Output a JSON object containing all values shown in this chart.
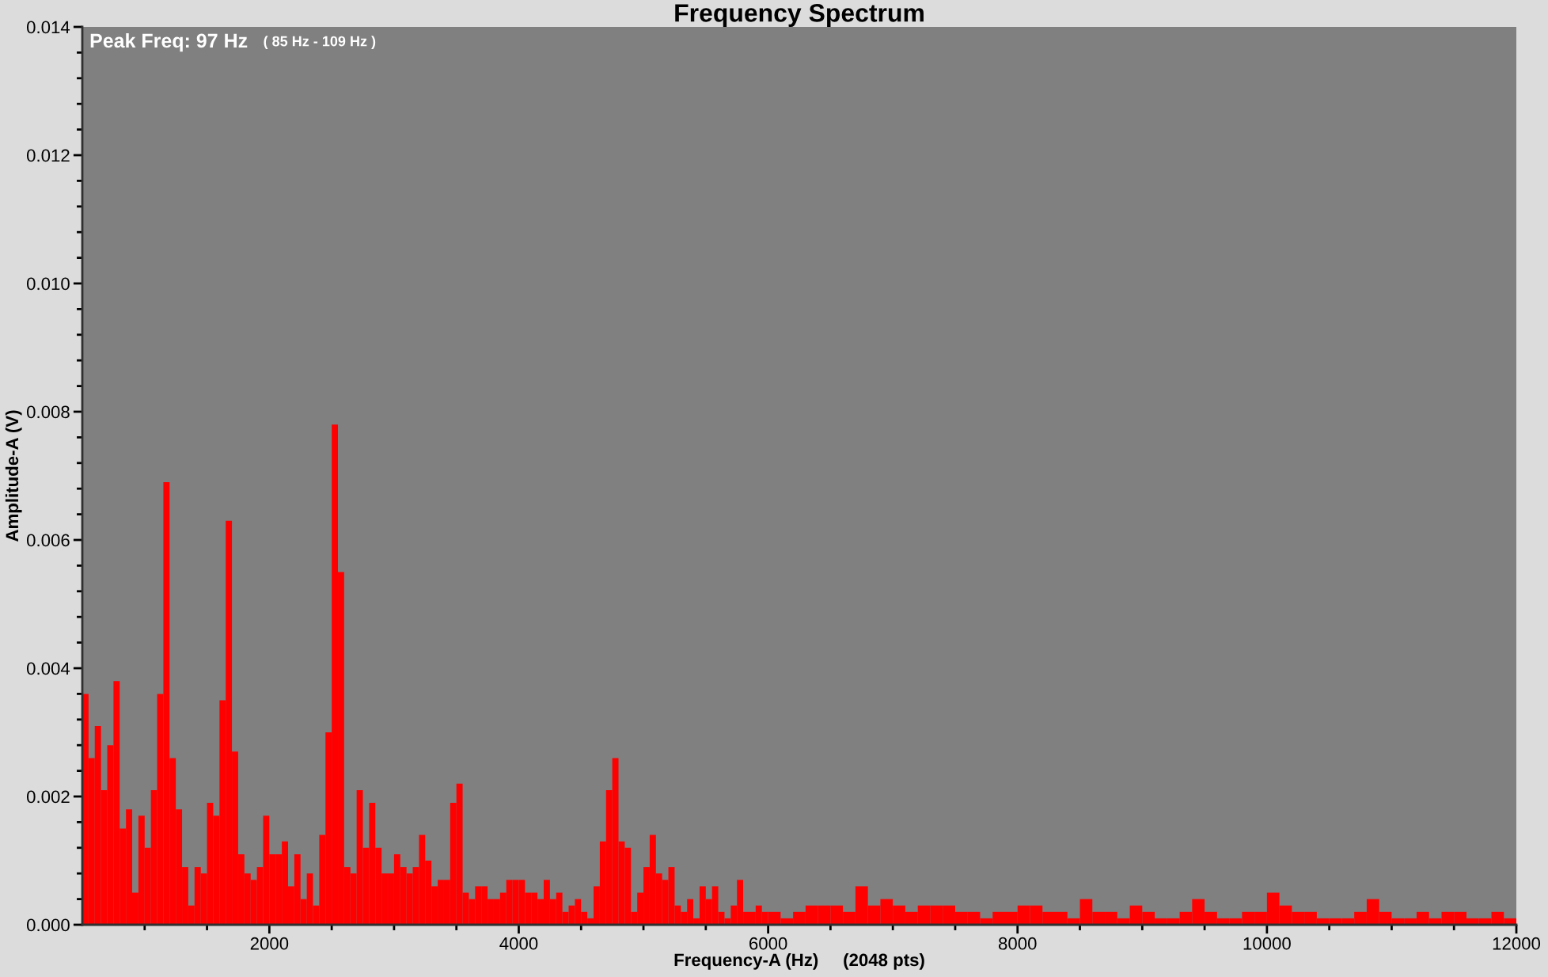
{
  "chart_data": {
    "type": "histogram",
    "title": "Frequency Spectrum",
    "xlabel": "Frequency-A (Hz)     (2048 pts)",
    "ylabel": "Amplitude-A (V)",
    "annotations": [
      "Peak Freq: 97 Hz",
      "( 85 Hz - 109 Hz )"
    ],
    "color": "#ff0000",
    "bins": [
      500,
      550,
      600,
      650,
      700,
      750,
      800,
      850,
      900,
      950,
      1000,
      1050,
      1100,
      1150,
      1200,
      1250,
      1300,
      1350,
      1400,
      1450,
      1500,
      1550,
      1600,
      1650,
      1700,
      1750,
      1800,
      1850,
      1900,
      1950,
      2000,
      2050,
      2100,
      2150,
      2200,
      2250,
      2300,
      2350,
      2400,
      2450,
      2500,
      2550,
      2600,
      2650,
      2700,
      2750,
      2800,
      2850,
      2900,
      2950,
      3000,
      3050,
      3100,
      3150,
      3200,
      3250,
      3300,
      3350,
      3400,
      3450,
      3500,
      3550,
      3600,
      3650,
      3700,
      3750,
      3800,
      3850,
      3900,
      3950,
      4000,
      4050,
      4100,
      4150,
      4200,
      4250,
      4300,
      4350,
      4400,
      4450,
      4500,
      4550,
      4600,
      4650,
      4700,
      4750,
      4800,
      4850,
      4900,
      4950,
      5000,
      5050,
      5100,
      5150,
      5200,
      5250,
      5300,
      5350,
      5400,
      5450,
      5500,
      5550,
      5600,
      5650,
      5700,
      5750,
      5800,
      5850,
      5900,
      5950,
      6000,
      6100,
      6200,
      6300,
      6400,
      6500,
      6600,
      6700,
      6800,
      6900,
      7000,
      7100,
      7200,
      7300,
      7400,
      7500,
      7600,
      7700,
      7800,
      7900,
      8000,
      8100,
      8200,
      8300,
      8400,
      8500,
      8600,
      8700,
      8800,
      8900,
      9000,
      9100,
      9200,
      9300,
      9400,
      9500,
      9600,
      9700,
      9800,
      9900,
      10000,
      10100,
      10200,
      10300,
      10400,
      10500,
      10600,
      10700,
      10800,
      10900,
      11000,
      11100,
      11200,
      11300,
      11400,
      11500,
      11600,
      11700,
      11800,
      11900,
      12000
    ],
    "values": [
      0.0036,
      0.0026,
      0.0031,
      0.0021,
      0.0028,
      0.0038,
      0.0015,
      0.0018,
      0.0005,
      0.0017,
      0.0012,
      0.0021,
      0.0036,
      0.0069,
      0.0026,
      0.0018,
      0.0009,
      0.0003,
      0.0009,
      0.0008,
      0.0019,
      0.0017,
      0.0035,
      0.0063,
      0.0027,
      0.0011,
      0.0008,
      0.0007,
      0.0009,
      0.0017,
      0.0011,
      0.0011,
      0.0013,
      0.0006,
      0.0011,
      0.0004,
      0.0008,
      0.0003,
      0.0014,
      0.003,
      0.0078,
      0.0055,
      0.0009,
      0.0008,
      0.0021,
      0.0012,
      0.0019,
      0.0012,
      0.0008,
      0.0008,
      0.0011,
      0.0009,
      0.0008,
      0.0009,
      0.0014,
      0.001,
      0.0006,
      0.0007,
      0.0007,
      0.0019,
      0.0022,
      0.0005,
      0.0004,
      0.0006,
      0.0006,
      0.0004,
      0.0004,
      0.0005,
      0.0007,
      0.0007,
      0.0007,
      0.0005,
      0.0005,
      0.0004,
      0.0007,
      0.0004,
      0.0005,
      0.0002,
      0.0003,
      0.0004,
      0.0002,
      0.0001,
      0.0006,
      0.0013,
      0.0021,
      0.0026,
      0.0013,
      0.0012,
      0.0002,
      0.0005,
      0.0009,
      0.0014,
      0.0008,
      0.0007,
      0.0009,
      0.0003,
      0.0002,
      0.0004,
      0.0001,
      0.0006,
      0.0004,
      0.0006,
      0.0002,
      0.0001,
      0.0003,
      0.0007,
      0.0002,
      0.0002,
      0.0003,
      0.0002,
      0.0002,
      0.0001,
      0.0002,
      0.0003,
      0.0003,
      0.0003,
      0.0002,
      0.0006,
      0.0003,
      0.0004,
      0.0003,
      0.0002,
      0.0003,
      0.0003,
      0.0003,
      0.0002,
      0.0002,
      0.0001,
      0.0002,
      0.0002,
      0.0003,
      0.0003,
      0.0002,
      0.0002,
      0.0001,
      0.0004,
      0.0002,
      0.0002,
      0.0001,
      0.0003,
      0.0002,
      0.0001,
      0.0001,
      0.0002,
      0.0004,
      0.0002,
      0.0001,
      0.0001,
      0.0002,
      0.0002,
      0.0005,
      0.0003,
      0.0002,
      0.0002,
      0.0001,
      0.0001,
      0.0001,
      0.0002,
      0.0004,
      0.0002,
      0.0001,
      0.0001,
      0.0002,
      0.0001,
      0.0002,
      0.0002,
      0.0001,
      0.0001,
      0.0002,
      0.0001
    ],
    "xlim": [
      500,
      12000
    ],
    "xticks": [
      {
        "value": 1000,
        "label": null
      },
      {
        "value": 1500,
        "label": null
      },
      2000,
      {
        "value": 2500,
        "label": null
      },
      {
        "value": 3000,
        "label": null
      },
      {
        "value": 3500,
        "label": null
      },
      4000,
      {
        "value": 4500,
        "label": null
      },
      {
        "value": 5000,
        "label": null
      },
      {
        "value": 5500,
        "label": null
      },
      6000,
      {
        "value": 6500,
        "label": null
      },
      {
        "value": 7000,
        "label": null
      },
      {
        "value": 7500,
        "label": null
      },
      8000,
      {
        "value": 8500,
        "label": null
      },
      {
        "value": 9000,
        "label": null
      },
      {
        "value": 9500,
        "label": null
      },
      10000,
      {
        "value": 10500,
        "label": null
      },
      {
        "value": 11000,
        "label": null
      },
      {
        "value": 11500,
        "label": null
      },
      12000
    ],
    "ylim": [
      0,
      0.014
    ],
    "yticks": [
      {
        "value": 0,
        "label": "0.000"
      },
      {
        "value": 0.0004,
        "label": null
      },
      {
        "value": 0.0008,
        "label": null
      },
      {
        "value": 0.0012,
        "label": null
      },
      {
        "value": 0.0016,
        "label": null
      },
      {
        "value": 0.002,
        "label": "0.002"
      },
      {
        "value": 0.0024,
        "label": null
      },
      {
        "value": 0.0028,
        "label": null
      },
      {
        "value": 0.0032,
        "label": null
      },
      {
        "value": 0.0036,
        "label": null
      },
      {
        "value": 0.004,
        "label": "0.004"
      },
      {
        "value": 0.0044,
        "label": null
      },
      {
        "value": 0.0048,
        "label": null
      },
      {
        "value": 0.0052,
        "label": null
      },
      {
        "value": 0.0056,
        "label": null
      },
      {
        "value": 0.006,
        "label": "0.006"
      },
      {
        "value": 0.0064,
        "label": null
      },
      {
        "value": 0.0068,
        "label": null
      },
      {
        "value": 0.0072,
        "label": null
      },
      {
        "value": 0.0076,
        "label": null
      },
      {
        "value": 0.008,
        "label": "0.008"
      },
      {
        "value": 0.0084,
        "label": null
      },
      {
        "value": 0.0088,
        "label": null
      },
      {
        "value": 0.0092,
        "label": null
      },
      {
        "value": 0.0096,
        "label": null
      },
      {
        "value": 0.01,
        "label": "0.010"
      },
      {
        "value": 0.0104,
        "label": null
      },
      {
        "value": 0.0108,
        "label": null
      },
      {
        "value": 0.0112,
        "label": null
      },
      {
        "value": 0.0116,
        "label": null
      },
      {
        "value": 0.012,
        "label": "0.012"
      },
      {
        "value": 0.0124,
        "label": null
      },
      {
        "value": 0.0128,
        "label": null
      },
      {
        "value": 0.0132,
        "label": null
      },
      {
        "value": 0.0136,
        "label": null
      },
      {
        "value": 0.014,
        "label": "0.014"
      }
    ],
    "grid": false
  }
}
